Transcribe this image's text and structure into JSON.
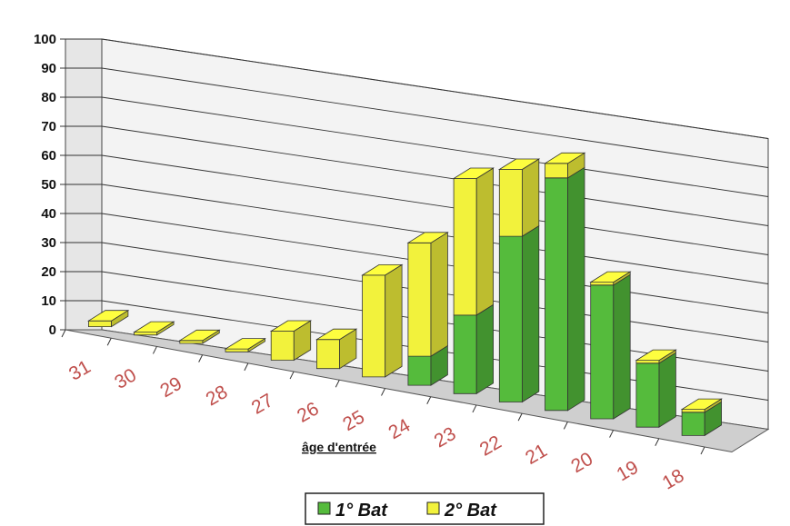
{
  "chart_data": {
    "type": "bar",
    "stacked": true,
    "three_d": true,
    "categories": [
      "31",
      "30",
      "29",
      "28",
      "27",
      "26",
      "25",
      "24",
      "23",
      "22",
      "21",
      "20",
      "19",
      "18"
    ],
    "series": [
      {
        "name": "1° Bat",
        "color": "#55bb3c",
        "values": [
          0,
          0,
          0,
          0,
          0,
          0,
          0,
          10,
          27,
          57,
          80,
          46,
          22,
          8
        ]
      },
      {
        "name": "2° Bat",
        "color": "#f2f23c",
        "values": [
          2,
          1,
          1,
          1,
          10,
          10,
          35,
          39,
          47,
          23,
          5,
          1,
          1,
          1
        ]
      }
    ],
    "xlabel": "âge d'entrée",
    "ylabel": "",
    "ylim": [
      0,
      100
    ],
    "yticks": [
      0,
      10,
      20,
      30,
      40,
      50,
      60,
      70,
      80,
      90,
      100
    ],
    "grid": true,
    "legend": "bottom"
  }
}
